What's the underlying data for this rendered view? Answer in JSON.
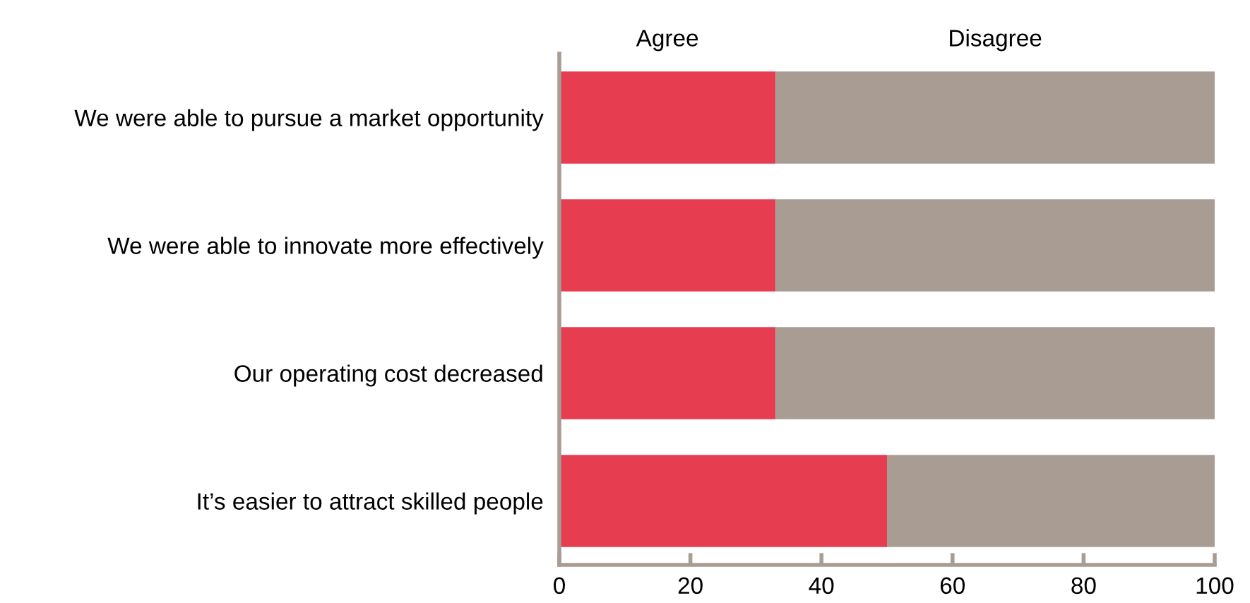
{
  "chart_data": {
    "type": "bar",
    "orientation": "horizontal",
    "stacked": true,
    "categories": [
      "We were able to pursue a market opportunity",
      "We were able to innovate more effectively",
      "Our operating cost decreased",
      "It’s easier to attract skilled people"
    ],
    "series": [
      {
        "name": "Agree",
        "color": "#e73d51",
        "values": [
          33,
          33,
          33,
          50
        ]
      },
      {
        "name": "Disagree",
        "color": "#a89c93",
        "values": [
          67,
          67,
          67,
          50
        ]
      }
    ],
    "xlim": [
      0,
      100
    ],
    "xticks": [
      0,
      20,
      40,
      60,
      80,
      100
    ],
    "grid": false,
    "legend": false
  }
}
